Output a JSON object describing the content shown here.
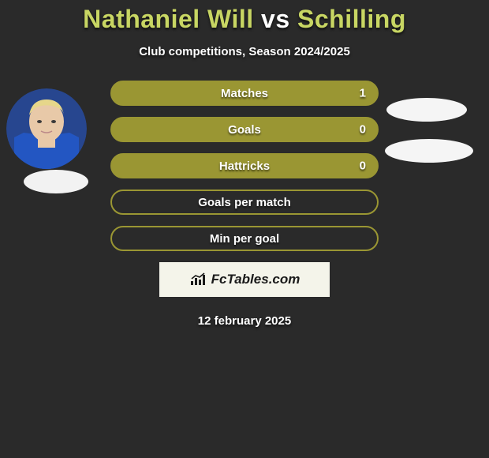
{
  "title": {
    "player1": "Nathaniel Will",
    "vs": "vs",
    "player2": "Schilling",
    "p1_color": "#c8d663",
    "vs_color": "#ffffff",
    "p2_color": "#c8d663"
  },
  "subtitle": "Club competitions, Season 2024/2025",
  "background_color": "#2a2a2a",
  "accent_color": "#9a9633",
  "accent_border": "#9a9633",
  "avatar": {
    "bg": "#2f4a8a",
    "skin": "#e8c9a8",
    "hair": "#e6d68a"
  },
  "stats": [
    {
      "label": "Matches",
      "value": "1",
      "filled": true
    },
    {
      "label": "Goals",
      "value": "0",
      "filled": true
    },
    {
      "label": "Hattricks",
      "value": "0",
      "filled": true
    },
    {
      "label": "Goals per match",
      "value": "",
      "filled": false
    },
    {
      "label": "Min per goal",
      "value": "",
      "filled": false
    }
  ],
  "brand": {
    "text": "FcTables.com",
    "bg": "#f4f4ea",
    "text_color": "#1a1a1a"
  },
  "date": "12 february 2025",
  "graphics": {
    "ellipse_left_bg": "#f2f2f2",
    "ellipse_right_bg": "#f5f5f5"
  }
}
